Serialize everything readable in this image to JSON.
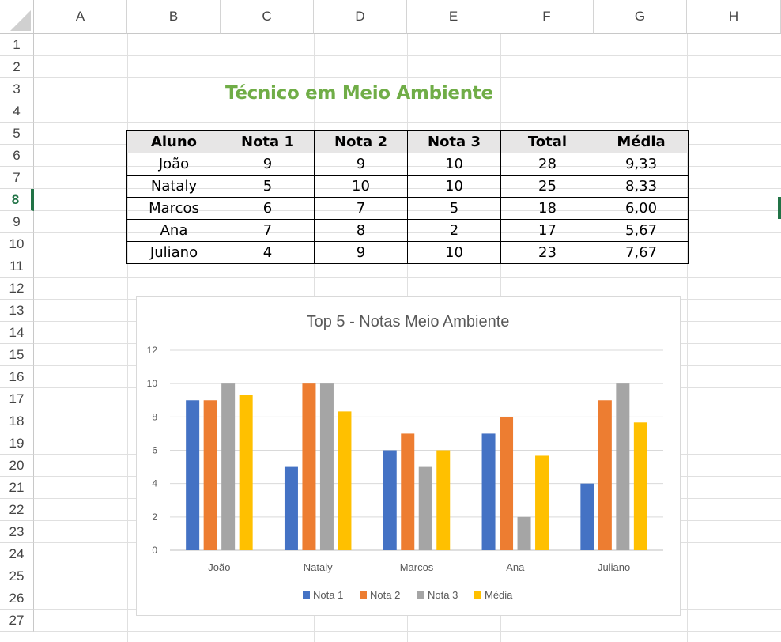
{
  "columns": [
    "A",
    "B",
    "C",
    "D",
    "E",
    "F",
    "G",
    "H"
  ],
  "rows": [
    "1",
    "2",
    "3",
    "4",
    "5",
    "6",
    "7",
    "8",
    "9",
    "10",
    "11",
    "12",
    "13",
    "14",
    "15",
    "16",
    "17",
    "18",
    "19",
    "20",
    "21",
    "22",
    "23",
    "24",
    "25",
    "26",
    "27"
  ],
  "selected_row": "8",
  "sheet_title": "Técnico em Meio Ambiente",
  "table": {
    "headers": [
      "Aluno",
      "Nota 1",
      "Nota 2",
      "Nota 3",
      "Total",
      "Média"
    ],
    "rows": [
      [
        "João",
        "9",
        "9",
        "10",
        "28",
        "9,33"
      ],
      [
        "Nataly",
        "5",
        "10",
        "10",
        "25",
        "8,33"
      ],
      [
        "Marcos",
        "6",
        "7",
        "5",
        "18",
        "6,00"
      ],
      [
        "Ana",
        "7",
        "8",
        "2",
        "17",
        "5,67"
      ],
      [
        "Juliano",
        "4",
        "9",
        "10",
        "23",
        "7,67"
      ]
    ]
  },
  "chart_data": {
    "type": "bar",
    "title": "Top 5 - Notas Meio Ambiente",
    "categories": [
      "João",
      "Nataly",
      "Marcos",
      "Ana",
      "Juliano"
    ],
    "series": [
      {
        "name": "Nota 1",
        "color": "#4472c4",
        "values": [
          9,
          5,
          6,
          7,
          4
        ]
      },
      {
        "name": "Nota 2",
        "color": "#ed7d31",
        "values": [
          9,
          10,
          7,
          8,
          9
        ]
      },
      {
        "name": "Nota 3",
        "color": "#a5a5a5",
        "values": [
          10,
          10,
          5,
          2,
          10
        ]
      },
      {
        "name": "Média",
        "color": "#ffc000",
        "values": [
          9.33,
          8.33,
          6.0,
          5.67,
          7.67
        ]
      }
    ],
    "ylim": [
      0,
      12
    ],
    "yticks": [
      "0",
      "2",
      "4",
      "6",
      "8",
      "10",
      "12"
    ],
    "grid": true,
    "legend": "bottom"
  }
}
